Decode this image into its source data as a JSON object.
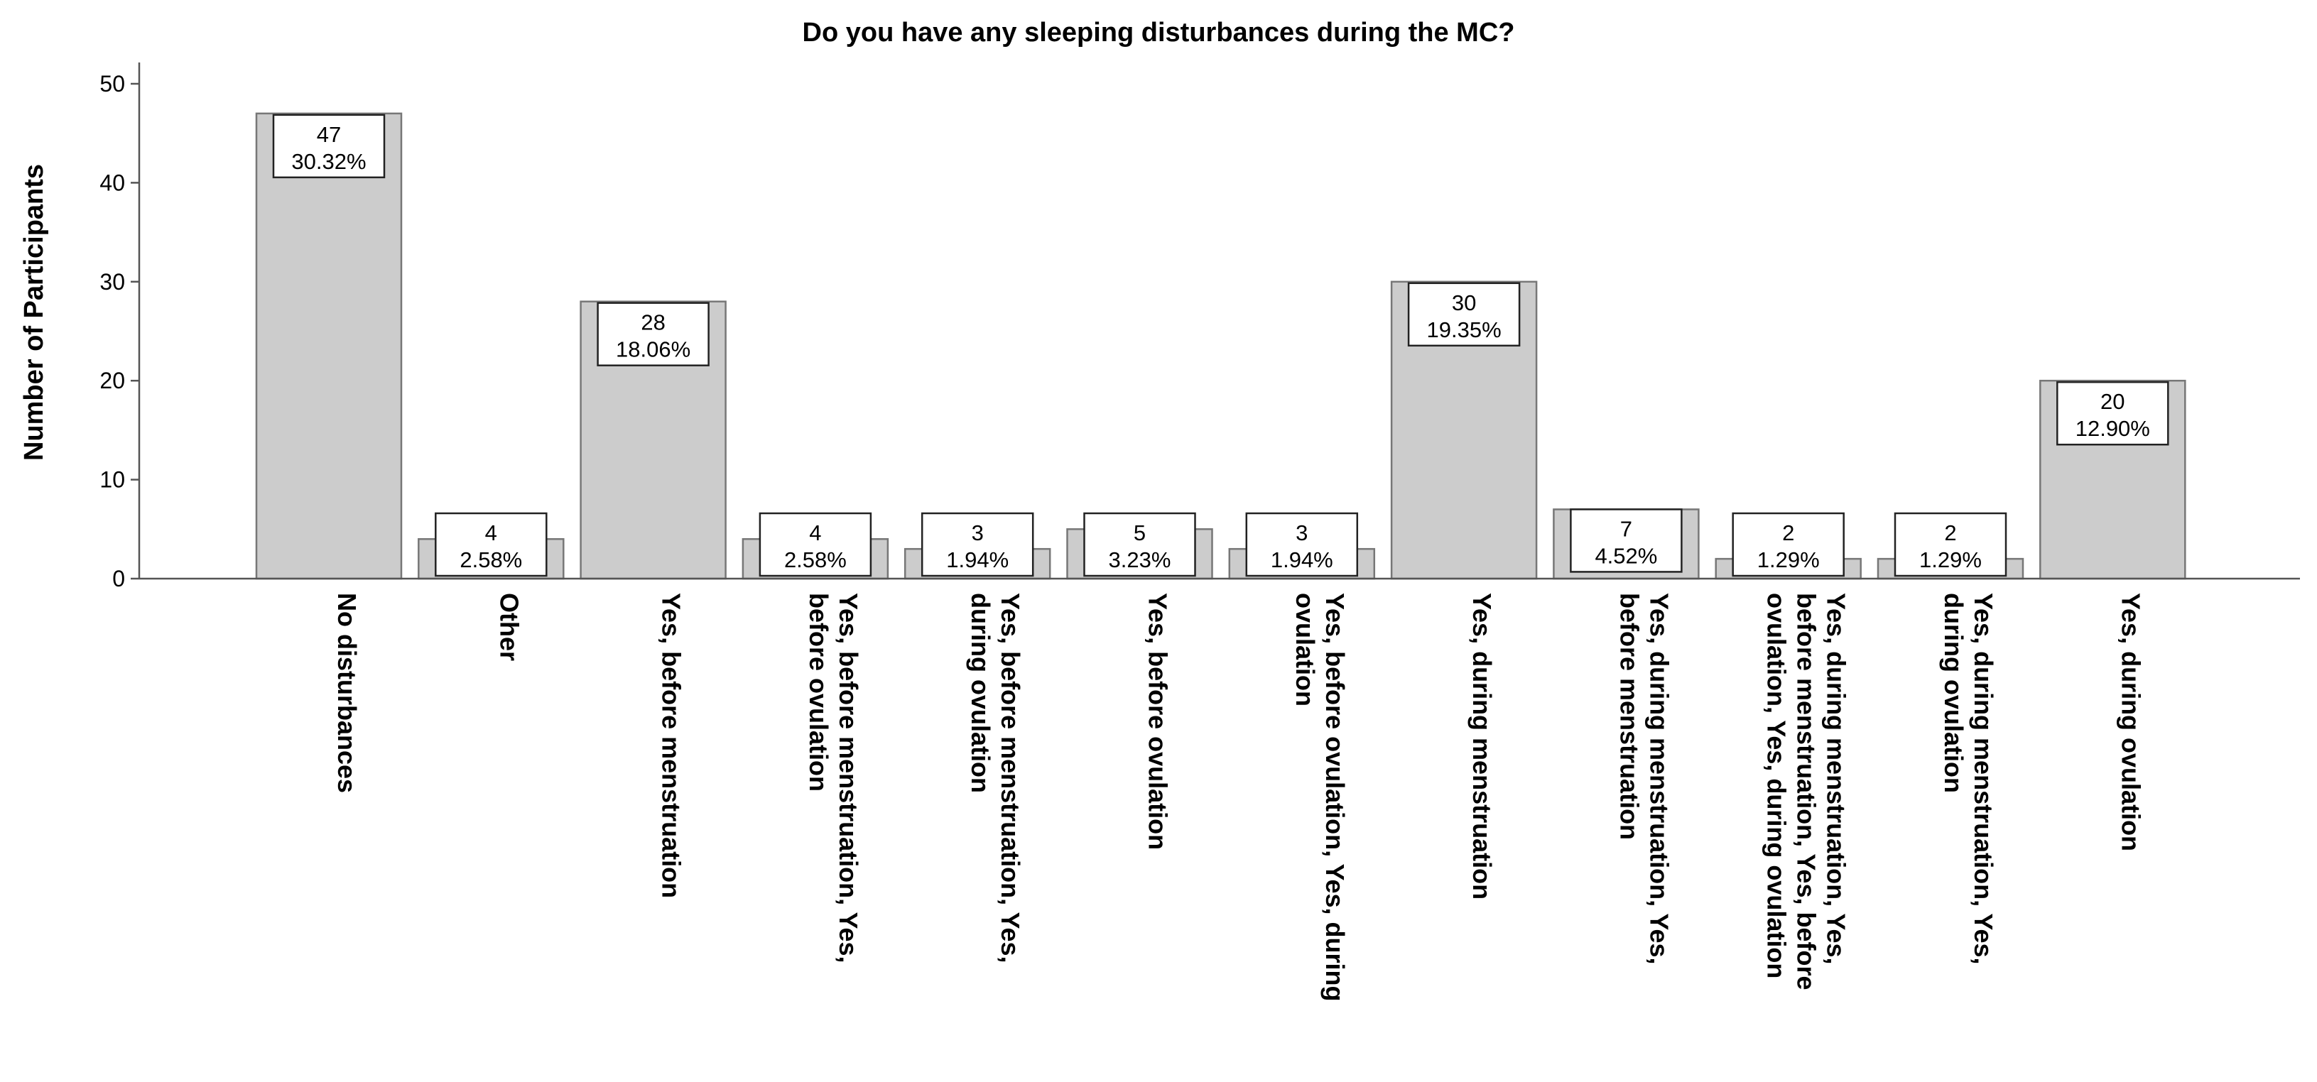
{
  "chart_data": {
    "type": "bar",
    "title": "Do you have any sleeping disturbances during the MC?",
    "xlabel": "",
    "ylabel": "Number of Participants",
    "ylim": [
      0,
      50
    ],
    "yticks": [
      0,
      10,
      20,
      30,
      40,
      50
    ],
    "grid": false,
    "categories": [
      [
        "No disturbances"
      ],
      [
        "Other"
      ],
      [
        "Yes, before menstruation"
      ],
      [
        "Yes, before menstruation, Yes,",
        "before ovulation"
      ],
      [
        "Yes, before menstruation, Yes,",
        "during ovulation"
      ],
      [
        "Yes, before ovulation"
      ],
      [
        "Yes, before ovulation, Yes, during",
        "ovulation"
      ],
      [
        "Yes, during menstruation"
      ],
      [
        "Yes, during menstruation, Yes,",
        "before menstruation"
      ],
      [
        "Yes, during menstruation, Yes,",
        "before menstruation, Yes, before",
        "ovulation, Yes, during ovulation"
      ],
      [
        "Yes, during menstruation, Yes,",
        "during ovulation"
      ],
      [
        "Yes, during ovulation"
      ]
    ],
    "values": [
      47,
      4,
      28,
      4,
      3,
      5,
      3,
      30,
      7,
      2,
      2,
      20
    ],
    "percent_labels": [
      "30.32%",
      "2.58%",
      "18.06%",
      "2.58%",
      "1.94%",
      "3.23%",
      "1.94%",
      "19.35%",
      "4.52%",
      "1.29%",
      "1.29%",
      "12.90%"
    ],
    "colors": {
      "bar_fill": "#cccccc",
      "bar_stroke": "#777777"
    }
  }
}
